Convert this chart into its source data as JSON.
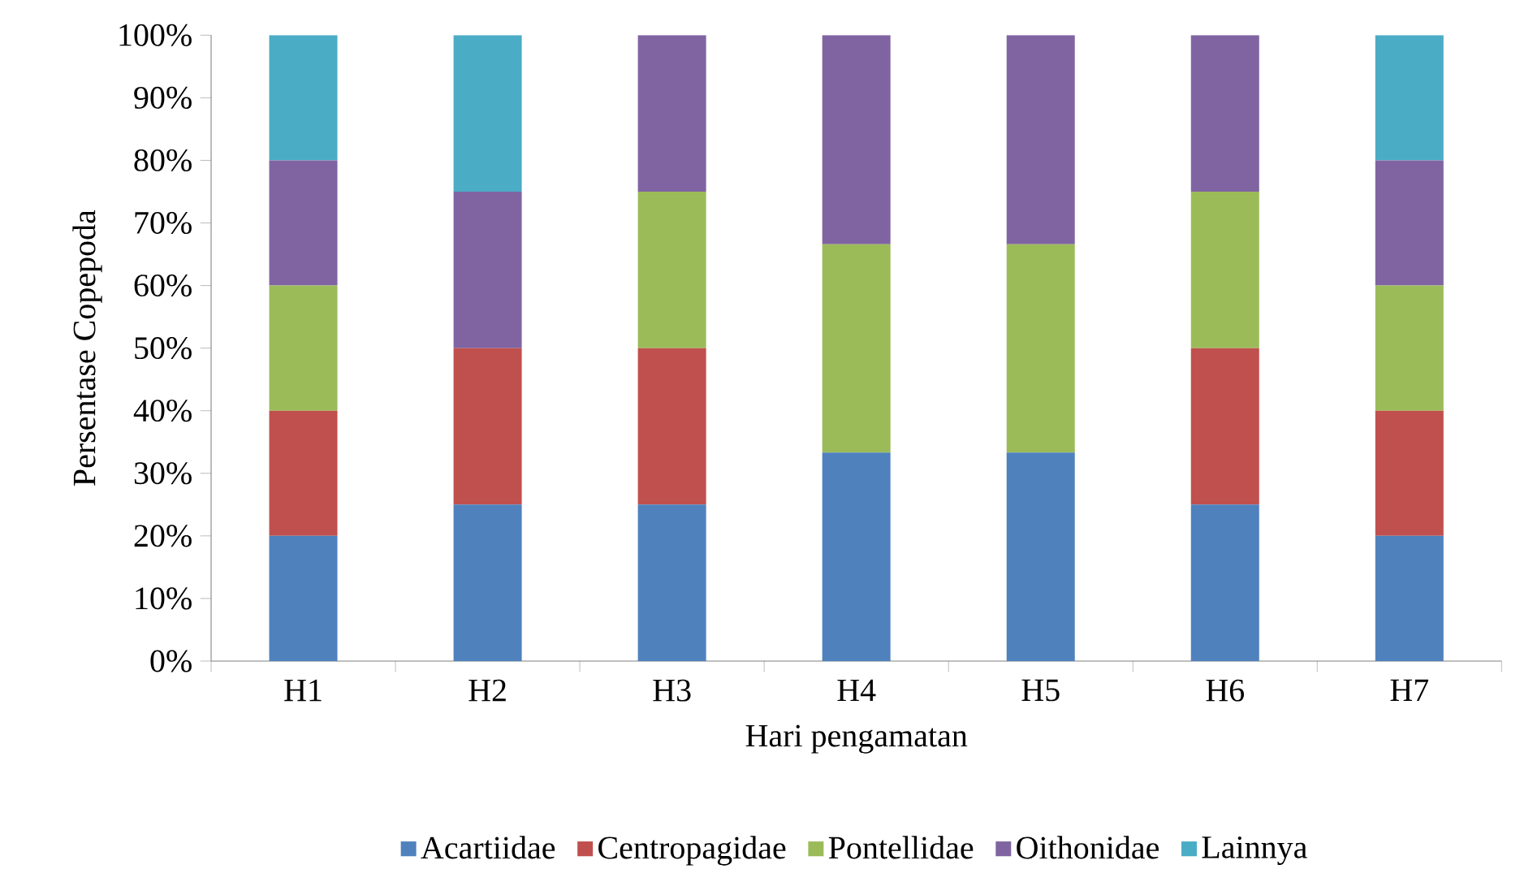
{
  "chart_data": {
    "type": "bar",
    "stacked": true,
    "xlabel": "Hari pengamatan",
    "ylabel": "Persentase Copepoda",
    "categories": [
      "H1",
      "H2",
      "H3",
      "H4",
      "H5",
      "H6",
      "H7"
    ],
    "series": [
      {
        "name": "Acartiidae",
        "color": "#4f81bd",
        "values": [
          20,
          25,
          25,
          33.3,
          33.3,
          25,
          20
        ]
      },
      {
        "name": "Centropagidae",
        "color": "#c0504d",
        "values": [
          20,
          25,
          25,
          0,
          0,
          25,
          20
        ]
      },
      {
        "name": "Pontellidae",
        "color": "#9bbb59",
        "values": [
          20,
          0,
          25,
          33.3,
          33.3,
          25,
          20
        ]
      },
      {
        "name": "Oithonidae",
        "color": "#8064a2",
        "values": [
          20,
          25,
          25,
          33.4,
          33.4,
          25,
          20
        ]
      },
      {
        "name": "Lainnya",
        "color": "#4bacc6",
        "values": [
          20,
          25,
          0,
          0,
          0,
          0,
          20
        ]
      }
    ],
    "ylim": [
      0,
      100
    ],
    "yticks": [
      {
        "value": 0,
        "label": "0%"
      },
      {
        "value": 10,
        "label": "10%"
      },
      {
        "value": 20,
        "label": "20%"
      },
      {
        "value": 30,
        "label": "30%"
      },
      {
        "value": 40,
        "label": "40%"
      },
      {
        "value": 50,
        "label": "50%"
      },
      {
        "value": 60,
        "label": "60%"
      },
      {
        "value": 70,
        "label": "70%"
      },
      {
        "value": 80,
        "label": "80%"
      },
      {
        "value": 90,
        "label": "90%"
      },
      {
        "value": 100,
        "label": "100%"
      }
    ],
    "grid": false,
    "legend": "bottom"
  }
}
